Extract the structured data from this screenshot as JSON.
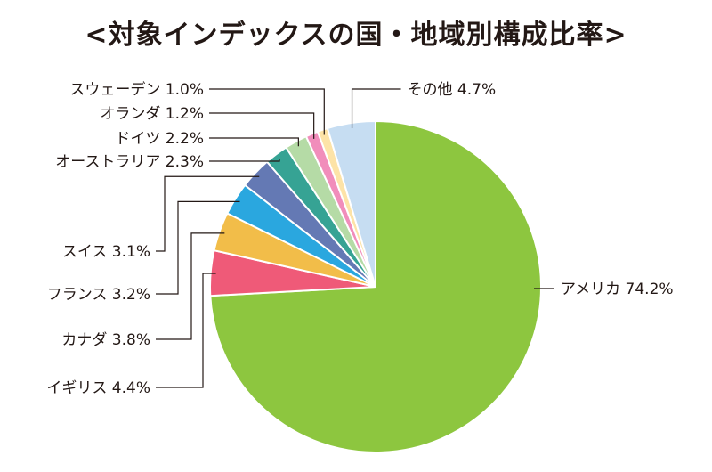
{
  "chart_data": {
    "type": "pie",
    "title": "<対象インデックスの国・地域別構成比率>",
    "start_angle_deg": 0,
    "direction": "clockwise",
    "slices": [
      {
        "label": "アメリカ",
        "value": 74.2,
        "color": "#8dc63f"
      },
      {
        "label": "イギリス",
        "value": 4.4,
        "color": "#ef5a78"
      },
      {
        "label": "カナダ",
        "value": 3.8,
        "color": "#f2bd49"
      },
      {
        "label": "フランス",
        "value": 3.2,
        "color": "#2aa7df"
      },
      {
        "label": "スイス",
        "value": 3.1,
        "color": "#6479b4"
      },
      {
        "label": "オーストラリア",
        "value": 2.3,
        "color": "#36a394"
      },
      {
        "label": "ドイツ",
        "value": 2.2,
        "color": "#b5dba6"
      },
      {
        "label": "オランダ",
        "value": 1.2,
        "color": "#f18dbb"
      },
      {
        "label": "スウェーデン",
        "value": 1.0,
        "color": "#fde3a7"
      },
      {
        "label": "その他",
        "value": 4.7,
        "color": "#c6ddf2"
      }
    ]
  }
}
